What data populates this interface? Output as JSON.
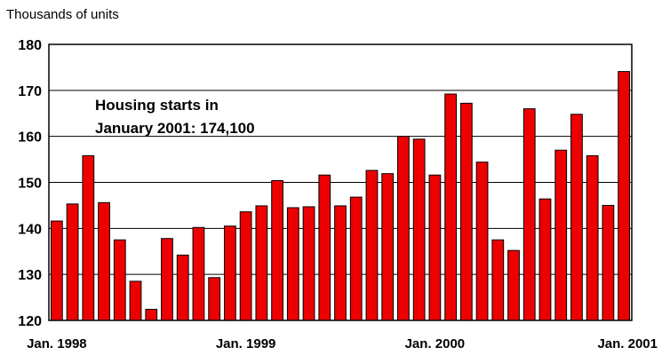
{
  "chart_data": {
    "type": "bar",
    "ylabel": "Thousands of units",
    "ylim": [
      120,
      180
    ],
    "yticks": [
      120,
      130,
      140,
      150,
      160,
      170,
      180
    ],
    "grid": true,
    "x_tick_labels": [
      "Jan. 1998",
      "Jan. 1999",
      "Jan. 2000",
      "Jan. 2001"
    ],
    "x_tick_indices": [
      0,
      12,
      24,
      36
    ],
    "annotation": [
      "Housing starts in",
      "January 2001: 174,100"
    ],
    "bar_color": "#ee0000",
    "categories": [
      "Jan 1998",
      "Feb 1998",
      "Mar 1998",
      "Apr 1998",
      "May 1998",
      "Jun 1998",
      "Jul 1998",
      "Aug 1998",
      "Sep 1998",
      "Oct 1998",
      "Nov 1998",
      "Dec 1998",
      "Jan 1999",
      "Feb 1999",
      "Mar 1999",
      "Apr 1999",
      "May 1999",
      "Jun 1999",
      "Jul 1999",
      "Aug 1999",
      "Sep 1999",
      "Oct 1999",
      "Nov 1999",
      "Dec 1999",
      "Jan 2000",
      "Feb 2000",
      "Mar 2000",
      "Apr 2000",
      "May 2000",
      "Jun 2000",
      "Jul 2000",
      "Aug 2000",
      "Sep 2000",
      "Oct 2000",
      "Nov 2000",
      "Dec 2000",
      "Jan 2001"
    ],
    "values": [
      141.6,
      145.3,
      155.8,
      145.6,
      137.5,
      128.5,
      122.4,
      137.8,
      134.2,
      140.2,
      129.3,
      140.5,
      143.6,
      144.9,
      150.4,
      144.5,
      144.7,
      151.6,
      144.9,
      146.8,
      152.6,
      151.9,
      160.0,
      159.4,
      151.6,
      169.2,
      167.2,
      154.4,
      137.5,
      135.2,
      166.0,
      146.4,
      157.0,
      164.8,
      155.8,
      145.0,
      174.1
    ]
  }
}
